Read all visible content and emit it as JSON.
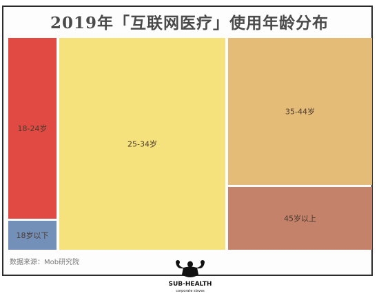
{
  "chart_data": {
    "type": "treemap",
    "title": "2019年「互联网医疗」使用年龄分布",
    "items": [
      {
        "label": "18-24岁",
        "color": "#e04a42"
      },
      {
        "label": "18岁以下",
        "color": "#7390b8"
      },
      {
        "label": "25-34岁",
        "color": "#f5e27c"
      },
      {
        "label": "35-44岁",
        "color": "#e4bc78"
      },
      {
        "label": "45岁以上",
        "color": "#c4826a"
      }
    ]
  },
  "source": "数据来源：Mob研究院",
  "logo": {
    "name": "SUB-HEALTH",
    "tagline": "corporate slaves",
    "icon": "flexing-figure-icon"
  }
}
